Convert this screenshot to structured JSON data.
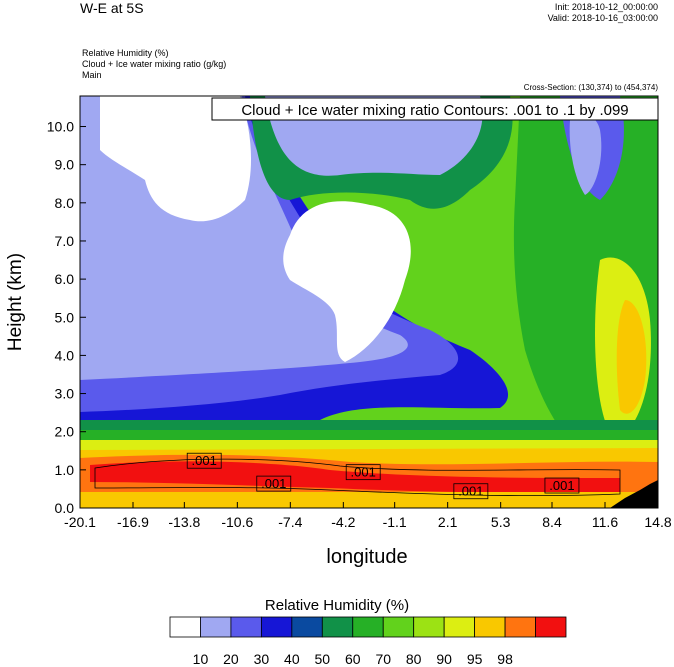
{
  "header": {
    "title": "W-E at 5S",
    "init": "Init: 2018-10-12_00:00:00",
    "valid": "Valid: 2018-10-16_03:00:00",
    "fields": [
      "Relative Humidity   (%)",
      "Cloud + Ice water mixing ratio   (g/kg)",
      "Main"
    ],
    "cross_section": "Cross-Section: (130,374) to (454,374)"
  },
  "chart_data": {
    "type": "heatmap",
    "title": "",
    "xlabel": "longitude",
    "ylabel": "Height (km)",
    "xlim": [
      -20.1,
      14.8
    ],
    "ylim": [
      0.0,
      10.8
    ],
    "x_ticks": [
      "-20.1",
      "-16.9",
      "-13.8",
      "-10.6",
      "-7.4",
      "-4.2",
      "-1.1",
      "2.1",
      "5.3",
      "8.4",
      "11.6",
      "14.8"
    ],
    "y_ticks": [
      "0.0",
      "1.0",
      "2.0",
      "3.0",
      "4.0",
      "5.0",
      "6.0",
      "7.0",
      "8.0",
      "9.0",
      "10.0"
    ],
    "contour_note": "Cloud + Ice water mixing ratio Contours: .001 to .1 by .099",
    "contour_labels": [
      {
        "text": ".001",
        "x": -12.6,
        "y": 1.2
      },
      {
        "text": ".001",
        "x": -8.4,
        "y": 0.6
      },
      {
        "text": ".001",
        "x": -3.0,
        "y": 0.9
      },
      {
        "text": ".001",
        "x": 3.5,
        "y": 0.4
      },
      {
        "text": ".001",
        "x": 9.0,
        "y": 0.55
      }
    ],
    "colorbar": {
      "title": "Relative Humidity  (%)",
      "colors": [
        "#ffffff",
        "#a0a8f2",
        "#5a5aec",
        "#1616d6",
        "#0a4aa0",
        "#119148",
        "#26b026",
        "#62d21c",
        "#9ce214",
        "#dcee12",
        "#f9c800",
        "#ff7410",
        "#f21010"
      ],
      "labels": [
        "10",
        "20",
        "30",
        "40",
        "50",
        "60",
        "70",
        "80",
        "90",
        "95",
        "98"
      ]
    }
  }
}
